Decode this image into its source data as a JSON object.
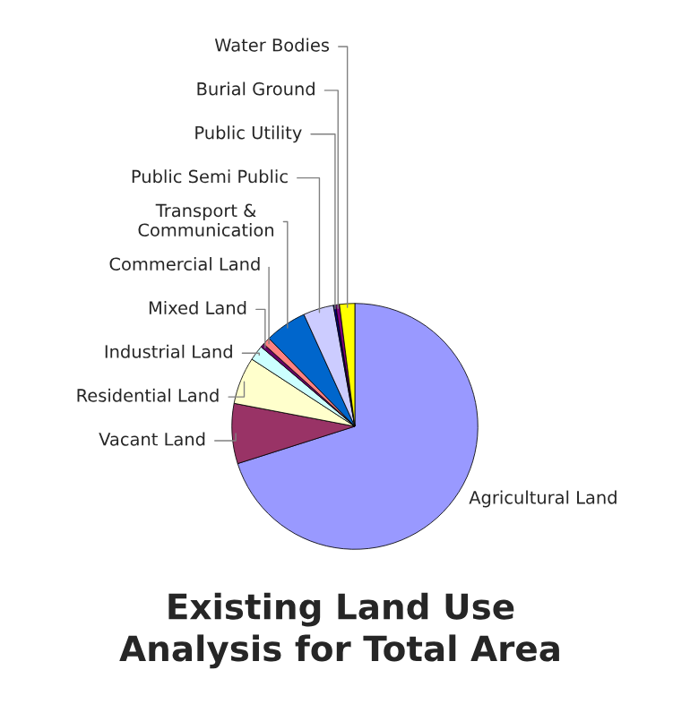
{
  "chart_data": {
    "type": "pie",
    "title": "Existing Land Use\nAnalysis for Total Area",
    "categories": [
      "Agricultural Land",
      "Vacant Land",
      "Residential Land",
      "Industrial Land",
      "Mixed Land",
      "Commercial Land",
      "Transport &\nCommunication",
      "Public Semi Public",
      "Public Utility",
      "Burial Ground",
      "Water Bodies"
    ],
    "values": [
      70.1,
      7.9,
      6.2,
      2.0,
      0.5,
      1.0,
      5.5,
      4.0,
      0.3,
      0.5,
      2.0
    ],
    "colors": [
      "#9999ff",
      "#993366",
      "#ffffcc",
      "#ccffff",
      "#660066",
      "#ff8080",
      "#0066cc",
      "#ccccff",
      "#000080",
      "#800080",
      "#ffff00"
    ],
    "legend": false
  }
}
